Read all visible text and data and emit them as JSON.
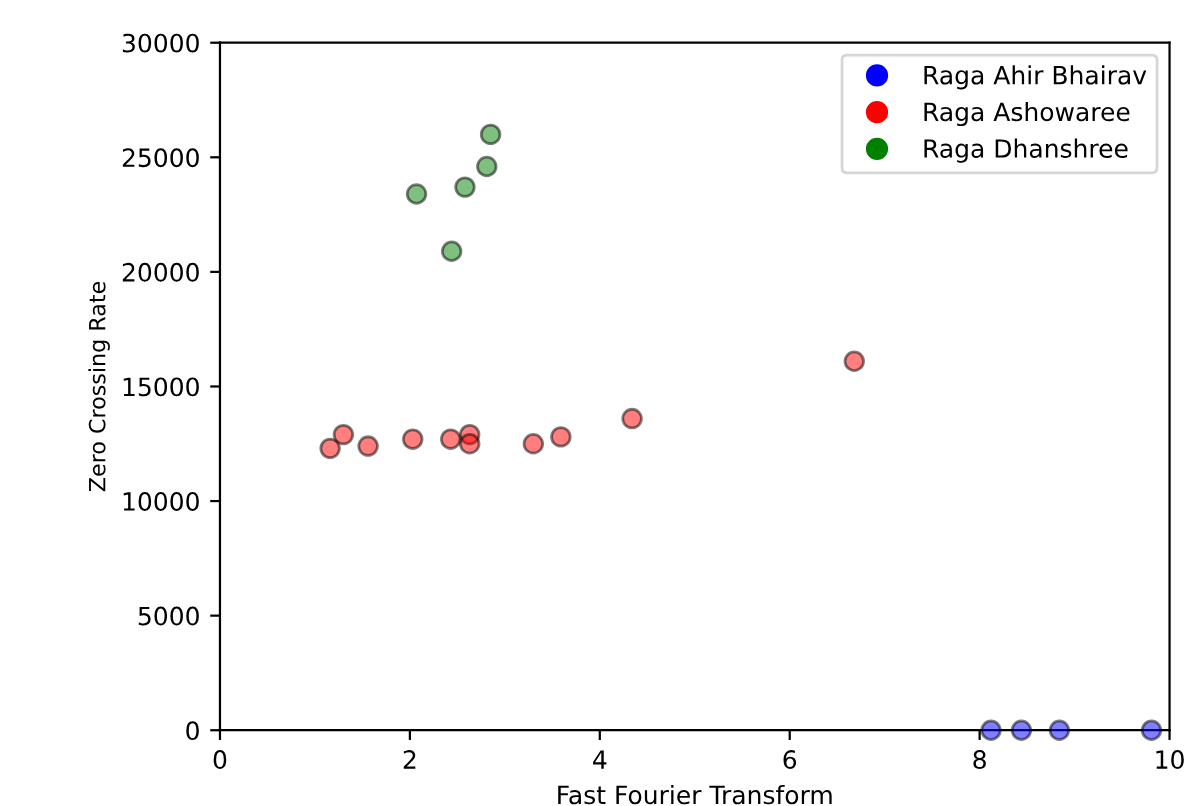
{
  "chart_data": {
    "type": "scatter",
    "xlabel": "Fast Fourier Transform",
    "ylabel": "Zero Crossing Rate",
    "xlim": [
      0,
      10
    ],
    "xticks": [
      0,
      2,
      4,
      6,
      8,
      10
    ],
    "ylim": [
      0,
      30000
    ],
    "yticks": [
      0,
      5000,
      10000,
      15000,
      20000,
      25000,
      30000
    ],
    "grid": false,
    "legend": "top right",
    "marker": "circle",
    "series": [
      {
        "name": "Raga Ahir Bhairav",
        "color": "#0000ff",
        "x": [
          8.12,
          8.44,
          8.84,
          9.81
        ],
        "values": [
          0,
          0,
          0,
          0
        ]
      },
      {
        "name": "Raga Ashowaree",
        "color": "#ff0000",
        "x": [
          6.68,
          4.34,
          3.59,
          3.3,
          2.63,
          2.63,
          2.43,
          2.03,
          1.56,
          1.3,
          1.16
        ],
        "values": [
          16100,
          13600,
          12800,
          12500,
          12900,
          12500,
          12700,
          12700,
          12400,
          12900,
          12300
        ]
      },
      {
        "name": "Raga Dhanshree",
        "color": "#008000",
        "x": [
          2.85,
          2.81,
          2.07,
          2.58,
          2.44
        ],
        "values": [
          26000,
          24600,
          23400,
          23700,
          20900
        ]
      }
    ]
  }
}
